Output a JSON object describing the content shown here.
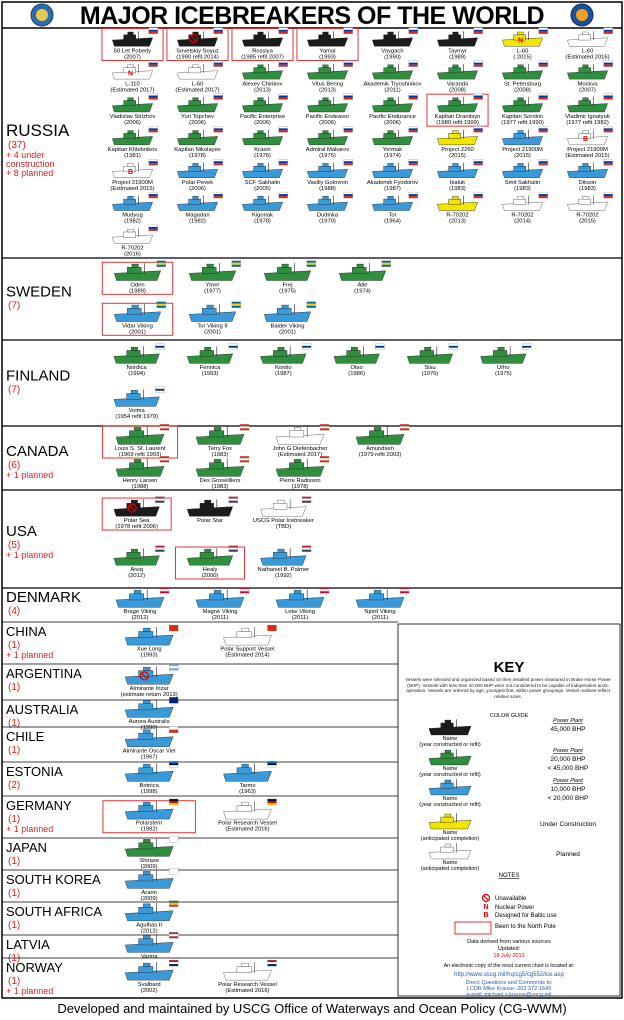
{
  "header": {
    "title": "MAJOR ICEBREAKERS OF THE WORLD"
  },
  "countries": [
    {
      "name": "RUSSIA",
      "count": "(37)",
      "extra": [
        "+ 4 under",
        "construction",
        "+ 8 planned"
      ],
      "flag": [
        "#ffffff",
        "#0039a6",
        "#d52b1e"
      ],
      "ships": [
        {
          "name": "50 Let Pobedy",
          "year": "(2007)",
          "color": "#1b1b1b",
          "north_pole": true
        },
        {
          "name": "Sovetskiy Soyuz",
          "year": "(1990 refit 2014)",
          "color": "#1b1b1b",
          "north_pole": true,
          "unavailable": true
        },
        {
          "name": "Rossiya",
          "year": "(1985 refit 2007)",
          "color": "#1b1b1b",
          "north_pole": true
        },
        {
          "name": "Yamal",
          "year": "(1993)",
          "color": "#1b1b1b",
          "north_pole": true
        },
        {
          "name": "Vaygach",
          "year": "(1990)",
          "color": "#1b1b1b"
        },
        {
          "name": "Taymyr",
          "year": "(1989)",
          "color": "#1b1b1b"
        },
        {
          "name": "L-60",
          "year": "( 2015)",
          "color": "#f2e600",
          "marker": "N"
        },
        {
          "name": "L-60",
          "year": "(Estimated 2016)",
          "color": "#ffffff"
        },
        {
          "name": "L-110",
          "year": "(Estimated 2017)",
          "color": "#ffffff",
          "marker": "N"
        },
        {
          "name": "L-60",
          "year": "(Estimated 2017)",
          "color": "#ffffff"
        },
        {
          "name": "Alexey Chirikov",
          "year": "(2013)",
          "color": "#2f8f3e"
        },
        {
          "name": "Vitus Bering",
          "year": "(2013)",
          "color": "#2f8f3e"
        },
        {
          "name": "Akademik Tryoshnikov",
          "year": "(2011)",
          "color": "#2f8f3e"
        },
        {
          "name": "Varanda",
          "year": "(2008)",
          "color": "#2f8f3e"
        },
        {
          "name": "St. Petersburg",
          "year": "(2008)",
          "color": "#2f8f3e"
        },
        {
          "name": "Moskva",
          "year": "(2007)",
          "color": "#2f8f3e"
        },
        {
          "name": "Vladislav Strizhov",
          "year": "(2006)",
          "color": "#2f8f3e"
        },
        {
          "name": "Yuri Topchev",
          "year": "(2006)",
          "color": "#2f8f3e"
        },
        {
          "name": "Pacific Enterprise",
          "year": "(2006)",
          "color": "#2f8f3e"
        },
        {
          "name": "Pacific Endeavor",
          "year": "(2006)",
          "color": "#2f8f3e"
        },
        {
          "name": "Pacific Endurance",
          "year": "(2006)",
          "color": "#2f8f3e"
        },
        {
          "name": "Kapitan Dranitsyn",
          "year": "(1980 refit 1999)",
          "color": "#2f8f3e",
          "north_pole": true
        },
        {
          "name": "Kapitan Sorokin",
          "year": "(1977 refit 1990)",
          "color": "#2f8f3e"
        },
        {
          "name": "Vladimir Ignatyuk",
          "year": "(1977 refit 1982)",
          "color": "#2f8f3e"
        },
        {
          "name": "Kapitan Khlebnikov",
          "year": "(1981)",
          "color": "#2f8f3e"
        },
        {
          "name": "Kapitan Nikolayev",
          "year": "(1978)",
          "color": "#2f8f3e"
        },
        {
          "name": "Krasin",
          "year": "(1976)",
          "color": "#2f8f3e"
        },
        {
          "name": "Admiral Makarov",
          "year": "(1975)",
          "color": "#2f8f3e"
        },
        {
          "name": "Yermak",
          "year": "(1974)",
          "color": "#2f8f3e"
        },
        {
          "name": "Project 2260",
          "year": "(2015)",
          "color": "#f2e600"
        },
        {
          "name": "Project 21900M",
          "year": "(2015)",
          "color": "#3a9ad9"
        },
        {
          "name": "Project 21900M",
          "year": "(Estimated 2015)",
          "color": "#ffffff",
          "marker": "B"
        },
        {
          "name": "Project 21900M",
          "year": "(Estimated 2015)",
          "color": "#ffffff",
          "marker": "B"
        },
        {
          "name": "Polar Pevek",
          "year": "(2006)",
          "color": "#3a9ad9"
        },
        {
          "name": "SCF Sakhalin",
          "year": "(2005)",
          "color": "#3a9ad9"
        },
        {
          "name": "Vasiliy Golovnin",
          "year": "(1988)",
          "color": "#3a9ad9"
        },
        {
          "name": "Akademik Fyodorov",
          "year": "(1987)",
          "color": "#3a9ad9"
        },
        {
          "name": "Ikaluk",
          "year": "(1983)",
          "color": "#3a9ad9"
        },
        {
          "name": "Smit Sakhalin",
          "year": "(1983)",
          "color": "#3a9ad9"
        },
        {
          "name": "Dikson",
          "year": "(1983)",
          "color": "#3a9ad9"
        },
        {
          "name": "Mudyug",
          "year": "(1982)",
          "color": "#3a9ad9"
        },
        {
          "name": "Magadan",
          "year": "(1982)",
          "color": "#3a9ad9"
        },
        {
          "name": "Kigoriak",
          "year": "(1978)",
          "color": "#3a9ad9"
        },
        {
          "name": "Dudinka",
          "year": "(1970)",
          "color": "#3a9ad9"
        },
        {
          "name": "Tor",
          "year": "(1964)",
          "color": "#3a9ad9"
        },
        {
          "name": "R-70202",
          "year": "(2013)",
          "color": "#f2e600"
        },
        {
          "name": "R-70202",
          "year": "(2014)",
          "color": "#ffffff"
        },
        {
          "name": "R-70202",
          "year": "(2015)",
          "color": "#ffffff"
        },
        {
          "name": "R-70202",
          "year": "(2016)",
          "color": "#ffffff"
        }
      ]
    },
    {
      "name": "SWEDEN",
      "count": "(7)",
      "extra": [],
      "flag": [
        "#006aa7",
        "#fecc00",
        "#006aa7"
      ],
      "ships": [
        {
          "name": "Oden",
          "year": "(1989)",
          "color": "#2f8f3e",
          "north_pole": true
        },
        {
          "name": "Ymer",
          "year": "(1977)",
          "color": "#2f8f3e"
        },
        {
          "name": "Frej",
          "year": "(1975)",
          "color": "#2f8f3e"
        },
        {
          "name": "Atle",
          "year": "(1974)",
          "color": "#2f8f3e"
        },
        {
          "name": "Vidar Viking",
          "year": "(2001)",
          "color": "#3a9ad9",
          "north_pole": true
        },
        {
          "name": "Tor Viking II",
          "year": "(2001)",
          "color": "#3a9ad9"
        },
        {
          "name": "Balder Viking",
          "year": "(2001)",
          "color": "#3a9ad9"
        }
      ]
    },
    {
      "name": "FINLAND",
      "count": "(7)",
      "extra": [],
      "flag": [
        "#ffffff",
        "#003580",
        "#ffffff"
      ],
      "ships": [
        {
          "name": "Nordica",
          "year": "(1994)",
          "color": "#2f8f3e"
        },
        {
          "name": "Fennica",
          "year": "(1993)",
          "color": "#2f8f3e"
        },
        {
          "name": "Kontio",
          "year": "(1987)",
          "color": "#2f8f3e"
        },
        {
          "name": "Otso",
          "year": "(1986)",
          "color": "#2f8f3e"
        },
        {
          "name": "Sisu",
          "year": "(1976)",
          "color": "#2f8f3e"
        },
        {
          "name": "Urho",
          "year": "(1975)",
          "color": "#2f8f3e"
        },
        {
          "name": "Voima",
          "year": "(1954 refit 1979)",
          "color": "#3a9ad9"
        }
      ]
    },
    {
      "name": "CANADA",
      "count": "(6)",
      "extra": [
        "+ 1 planned"
      ],
      "flag": [
        "#d52b1e",
        "#ffffff",
        "#d52b1e"
      ],
      "ships": [
        {
          "name": "Louis S. St. Laurent",
          "year": "(1969 refit 1993)",
          "color": "#2f8f3e",
          "north_pole": true
        },
        {
          "name": "Terry Fox",
          "year": "(1983)",
          "color": "#2f8f3e"
        },
        {
          "name": "John G.Diefenbacher",
          "year": "(Estimated 2017)",
          "color": "#ffffff"
        },
        {
          "name": "Amundsen",
          "year": "(1979 refit 2003)",
          "color": "#2f8f3e"
        },
        {
          "name": "Henry Larsen",
          "year": "(1988)",
          "color": "#2f8f3e"
        },
        {
          "name": "Des Groseilliers",
          "year": "(1983)",
          "color": "#2f8f3e"
        },
        {
          "name": "Pierre Radisson",
          "year": "(1978)",
          "color": "#2f8f3e"
        }
      ]
    },
    {
      "name": "USA",
      "count": "(5)",
      "extra": [
        "+ 1 planned"
      ],
      "flag": [
        "#b22234",
        "#ffffff",
        "#3c3b6e"
      ],
      "ships": [
        {
          "name": "Polar Sea",
          "year": "(1978 refit 2006)",
          "color": "#1b1b1b",
          "north_pole": true,
          "unavailable": true
        },
        {
          "name": "Polar Star",
          "color": "#1b1b1b"
        },
        {
          "name": "USCG Polar Icebreaker",
          "year": "(TBD)",
          "color": "#ffffff"
        },
        {
          "name": "Aiviq",
          "year": "(2012)",
          "color": "#2f8f3e"
        },
        {
          "name": "Healy",
          "year": "(2000)",
          "color": "#2f8f3e",
          "north_pole": true
        },
        {
          "name": "Nathaniel B. Palmer",
          "year": "(1992)",
          "color": "#3a9ad9"
        }
      ]
    },
    {
      "name": "DENMARK",
      "count": "(4)",
      "extra": [],
      "flag": [
        "#c60c30",
        "#ffffff",
        "#c60c30"
      ],
      "ships": [
        {
          "name": "Brage Viking",
          "year": "(2012)",
          "color": "#3a9ad9"
        },
        {
          "name": "Magne Viking",
          "year": "(2011)",
          "color": "#3a9ad9"
        },
        {
          "name": "Loke Viking",
          "year": "(2011)",
          "color": "#3a9ad9"
        },
        {
          "name": "Njord Viking",
          "year": "(2011)",
          "color": "#3a9ad9"
        }
      ]
    },
    {
      "name": "CHINA",
      "count": "(1)",
      "extra": [
        "+ 1 planned"
      ],
      "flag": [
        "#de2910"
      ],
      "ships": [
        {
          "name": "Xue Long",
          "year": "(1993)",
          "color": "#3a9ad9"
        },
        {
          "name": "Polar Support Vessel",
          "year": "(Estimated 2014)",
          "color": "#ffffff"
        }
      ]
    },
    {
      "name": "ARGENTINA",
      "count": "(1)",
      "extra": [],
      "flag": [
        "#74acdf",
        "#ffffff",
        "#74acdf"
      ],
      "ships": [
        {
          "name": "Almirante Irizar",
          "year": "(estimate return 2013)",
          "color": "#3a9ad9",
          "unavailable": true
        }
      ]
    },
    {
      "name": "AUSTRALIA",
      "count": "(1)",
      "extra": [],
      "flag": [
        "#00247d"
      ],
      "ships": [
        {
          "name": "Aurora Australis",
          "year": "(1990)",
          "color": "#3a9ad9"
        }
      ]
    },
    {
      "name": "CHILE",
      "count": "(1)",
      "extra": [],
      "flag": [
        "#ffffff",
        "#d52b1e"
      ],
      "ships": [
        {
          "name": "Almirante Oscar Viel",
          "year": "(1967)",
          "color": "#3a9ad9"
        }
      ]
    },
    {
      "name": "ESTONIA",
      "count": "(2)",
      "extra": [],
      "flag": [
        "#0072ce",
        "#000000",
        "#ffffff"
      ],
      "ships": [
        {
          "name": "Botnica",
          "year": "(1998)",
          "color": "#3a9ad9"
        },
        {
          "name": "Tarmo",
          "year": "(1963)",
          "color": "#3a9ad9"
        }
      ]
    },
    {
      "name": "GERMANY",
      "count": "(1)",
      "extra": [
        "+ 1 planned"
      ],
      "flag": [
        "#000000",
        "#dd0000",
        "#ffce00"
      ],
      "ships": [
        {
          "name": "Polarstern",
          "year": "(1982)",
          "color": "#3a9ad9",
          "north_pole": true
        },
        {
          "name": "Polar Research Vessel",
          "year": "(Estimated 2016)",
          "color": "#ffffff"
        }
      ]
    },
    {
      "name": "JAPAN",
      "count": "(1)",
      "extra": [],
      "flag": [
        "#ffffff"
      ],
      "ships": [
        {
          "name": "Shirase",
          "year": "(2009)",
          "color": "#2f8f3e"
        }
      ]
    },
    {
      "name": "SOUTH KOREA",
      "count": "(1)",
      "extra": [],
      "flag": [
        "#ffffff"
      ],
      "ships": [
        {
          "name": "Araon",
          "year": "(2009)",
          "color": "#3a9ad9"
        }
      ]
    },
    {
      "name": "SOUTH AFRICA",
      "count": "(1)",
      "extra": [],
      "flag": [
        "#007a4d",
        "#ffb612",
        "#de3831"
      ],
      "ships": [
        {
          "name": "Agulhas II",
          "year": "(2012)",
          "color": "#3a9ad9"
        }
      ]
    },
    {
      "name": "LATVIA",
      "count": "(1)",
      "extra": [],
      "flag": [
        "#9e3039",
        "#ffffff",
        "#9e3039"
      ],
      "ships": [
        {
          "name": "Varma",
          "color": "#3a9ad9"
        }
      ]
    },
    {
      "name": "NORWAY",
      "count": "(1)",
      "extra": [
        "+ 1 planned"
      ],
      "flag": [
        "#ba0c2f",
        "#ffffff",
        "#00205b"
      ],
      "ships": [
        {
          "name": "Svalbard",
          "year": "(2002)",
          "color": "#3a9ad9"
        },
        {
          "name": "Polar Research Vessel",
          "year": "(Estimated 2016)",
          "color": "#ffffff"
        }
      ]
    }
  ],
  "key": {
    "title": "KEY",
    "description": "Vessels were selected and organized based on their installed power measured in Brake Horse Power (BHP). Vessels with less than 10,000 BHP were not considered to be capable of independent arctic operation. Vessels are ordered by age, youngest first, within power groupings. Vessel outlines reflect relative sizes.",
    "color_guide": "COLOR GUIDE",
    "entries": [
      {
        "color": "#1b1b1b",
        "name": "Name",
        "year": "(year constructed or refit)",
        "power": "Power Plant",
        "bhp": [
          "45,000 BHP"
        ]
      },
      {
        "color": "#2f8f3e",
        "name": "Name",
        "year": "(year constructed or refit)",
        "power": "Power Plant",
        "bhp": [
          "20,000 BHP",
          "< 45,000 BHP"
        ]
      },
      {
        "color": "#3a9ad9",
        "name": "Name",
        "year": "(year constructed or refit)",
        "power": "Power Plant",
        "bhp": [
          "10,000 BHP",
          "< 20,000 BHP"
        ]
      },
      {
        "color": "#f2e600",
        "name": "Name",
        "year": "(anticipated completion)",
        "status": "Under Construction"
      },
      {
        "color": "#ffffff",
        "name": "Name",
        "year": "(anticipated completion)",
        "status": "Planned"
      }
    ],
    "notes_title": "NOTES",
    "notes": [
      {
        "text": "Unavailable"
      },
      {
        "marker": "N",
        "text": "Nuclear Power"
      },
      {
        "marker": "B",
        "text": "Designed for Baltic use"
      },
      {
        "text": "Been to the North Pole"
      }
    ],
    "sources": "Data derived from various sources",
    "updated": "Updated:",
    "date": "18 July 2013",
    "copy": "An electronic copy of the most current chart is located at:",
    "url": "http://www.uscg.mil/hq/cg5/cg552/ice.asp",
    "contact": [
      "Direct Questions and Comments to:",
      "LCDR Mike Krause- 202 372-1540",
      "e-mail: michael.s.krause@uscg.mil"
    ]
  },
  "footer": "Developed and maintained by USCG Office of Waterways and Ocean Policy (CG-WWM)"
}
